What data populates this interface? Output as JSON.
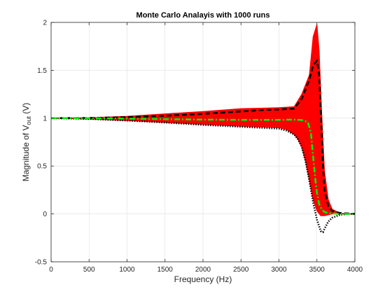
{
  "chart_data": {
    "type": "line",
    "title": "Monte Carlo Analayis with 1000 runs",
    "xlabel": "Frequency (Hz)",
    "ylabel": {
      "prefix": "Magnitude of V",
      "subscript": "out",
      "suffix": " (V)"
    },
    "xlim": [
      0,
      4000
    ],
    "ylim": [
      -0.5,
      2
    ],
    "xticks": [
      0,
      500,
      1000,
      1500,
      2000,
      2500,
      3000,
      3500,
      4000
    ],
    "xtick_labels": [
      "0",
      "500",
      "1000",
      "1500",
      "2000",
      "2500",
      "3000",
      "3500",
      "4000"
    ],
    "yticks": [
      -0.5,
      0,
      0.5,
      1,
      1.5,
      2
    ],
    "ytick_labels": [
      "-0.5",
      "0",
      "0.5",
      "1",
      "1.5",
      "2"
    ],
    "grid": true,
    "series": [
      {
        "style": "monte-carlo-band-upper",
        "color": "#ff0000",
        "x": [
          0,
          500,
          1000,
          1500,
          2000,
          2500,
          3000,
          3200,
          3300,
          3400,
          3450,
          3500,
          3530,
          3560,
          3600,
          3650,
          3700,
          3800,
          3900,
          4000
        ],
        "values": [
          1.0,
          1.005,
          1.02,
          1.045,
          1.07,
          1.1,
          1.11,
          1.12,
          1.25,
          1.45,
          1.85,
          1.98,
          1.7,
          1.1,
          0.45,
          0.15,
          0.05,
          0.01,
          0.0,
          0.0
        ]
      },
      {
        "style": "monte-carlo-band-lower",
        "color": "#ff0000",
        "x": [
          0,
          500,
          1000,
          1500,
          2000,
          2500,
          3000,
          3100,
          3200,
          3250,
          3300,
          3350,
          3400,
          3450,
          3500,
          3550,
          3600,
          3700,
          3800,
          4000
        ],
        "values": [
          1.0,
          0.99,
          0.975,
          0.955,
          0.935,
          0.915,
          0.9,
          0.88,
          0.83,
          0.78,
          0.7,
          0.55,
          0.35,
          0.15,
          0.03,
          -0.02,
          -0.02,
          0.0,
          0.0,
          0.0
        ]
      },
      {
        "style": "black-dashed",
        "color": "#000000",
        "x": [
          0,
          500,
          1000,
          1500,
          2000,
          2500,
          2800,
          3000,
          3200,
          3300,
          3400,
          3450,
          3500,
          3530,
          3560,
          3580,
          3600,
          3650,
          3700,
          3800,
          4000
        ],
        "values": [
          1.0,
          1.002,
          1.01,
          1.025,
          1.045,
          1.07,
          1.085,
          1.09,
          1.1,
          1.2,
          1.4,
          1.55,
          1.6,
          1.45,
          0.9,
          0.5,
          0.25,
          0.08,
          0.03,
          0.01,
          0.0
        ]
      },
      {
        "style": "black-dotted",
        "color": "#000000",
        "x": [
          0,
          500,
          1000,
          1500,
          2000,
          2500,
          3000,
          3100,
          3200,
          3250,
          3300,
          3350,
          3400,
          3450,
          3500,
          3550,
          3580,
          3610,
          3650,
          3700,
          3800,
          3900,
          4000
        ],
        "values": [
          1.0,
          0.993,
          0.975,
          0.955,
          0.93,
          0.91,
          0.89,
          0.87,
          0.83,
          0.78,
          0.7,
          0.55,
          0.35,
          0.12,
          -0.06,
          -0.18,
          -0.19,
          -0.14,
          -0.08,
          -0.04,
          -0.01,
          0.0,
          0.0
        ]
      },
      {
        "style": "green-dash-dot",
        "color": "#00ee00",
        "x": [
          0,
          500,
          1000,
          1500,
          2000,
          2500,
          3000,
          3200,
          3300,
          3380,
          3420,
          3450,
          3480,
          3500,
          3530,
          3560,
          3600,
          3650,
          3700,
          3800,
          4000
        ],
        "values": [
          1.0,
          1.0,
          0.995,
          0.99,
          0.985,
          0.982,
          0.982,
          0.985,
          0.98,
          0.96,
          0.85,
          0.6,
          0.35,
          0.22,
          0.1,
          0.05,
          0.02,
          0.01,
          0.005,
          0.0,
          0.0
        ]
      }
    ]
  }
}
